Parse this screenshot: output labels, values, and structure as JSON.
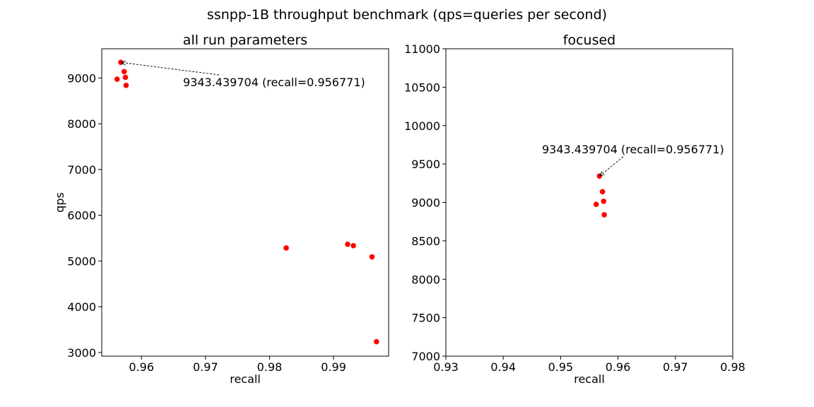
{
  "suptitle": "ssnpp-1B throughput benchmark (qps=queries per second)",
  "colors": {
    "points": "#ff0000",
    "axes": "#000000",
    "background": "#ffffff"
  },
  "chart_data": [
    {
      "type": "scatter",
      "title": "all run parameters",
      "xlabel": "recall",
      "ylabel": "qps",
      "xlim": [
        0.9538,
        0.9986
      ],
      "ylim": [
        2920,
        9640
      ],
      "xticks": [
        0.96,
        0.97,
        0.98,
        0.99
      ],
      "xtick_labels": [
        "0.96",
        "0.97",
        "0.98",
        "0.99"
      ],
      "yticks": [
        3000,
        4000,
        5000,
        6000,
        7000,
        8000,
        9000
      ],
      "ytick_labels": [
        "3000",
        "4000",
        "5000",
        "6000",
        "7000",
        "8000",
        "9000"
      ],
      "grid": false,
      "points": [
        {
          "x": 0.956771,
          "y": 9343.439704
        },
        {
          "x": 0.9573,
          "y": 9140
        },
        {
          "x": 0.9575,
          "y": 9015
        },
        {
          "x": 0.9562,
          "y": 8975
        },
        {
          "x": 0.9576,
          "y": 8840
        },
        {
          "x": 0.9826,
          "y": 5285
        },
        {
          "x": 0.9922,
          "y": 5365
        },
        {
          "x": 0.9931,
          "y": 5335
        },
        {
          "x": 0.996,
          "y": 5090
        },
        {
          "x": 0.9967,
          "y": 3235
        }
      ],
      "annotation": {
        "text": "9343.439704 (recall=0.956771)",
        "target": {
          "x": 0.956771,
          "y": 9343.439704
        }
      }
    },
    {
      "type": "scatter",
      "title": "focused",
      "xlabel": "recall",
      "ylabel": "",
      "xlim": [
        0.93,
        0.98
      ],
      "ylim": [
        7000,
        11000
      ],
      "xticks": [
        0.93,
        0.94,
        0.95,
        0.96,
        0.97,
        0.98
      ],
      "xtick_labels": [
        "0.93",
        "0.94",
        "0.95",
        "0.96",
        "0.97",
        "0.98"
      ],
      "yticks": [
        7000,
        7500,
        8000,
        8500,
        9000,
        9500,
        10000,
        10500,
        11000
      ],
      "ytick_labels": [
        "7000",
        "7500",
        "8000",
        "8500",
        "9000",
        "9500",
        "10000",
        "10500",
        "11000"
      ],
      "grid": false,
      "points": [
        {
          "x": 0.956771,
          "y": 9343.439704
        },
        {
          "x": 0.9573,
          "y": 9140
        },
        {
          "x": 0.9575,
          "y": 9015
        },
        {
          "x": 0.9562,
          "y": 8975
        },
        {
          "x": 0.9576,
          "y": 8840
        }
      ],
      "annotation": {
        "text": "9343.439704 (recall=0.956771)",
        "target": {
          "x": 0.956771,
          "y": 9343.439704
        }
      }
    }
  ]
}
